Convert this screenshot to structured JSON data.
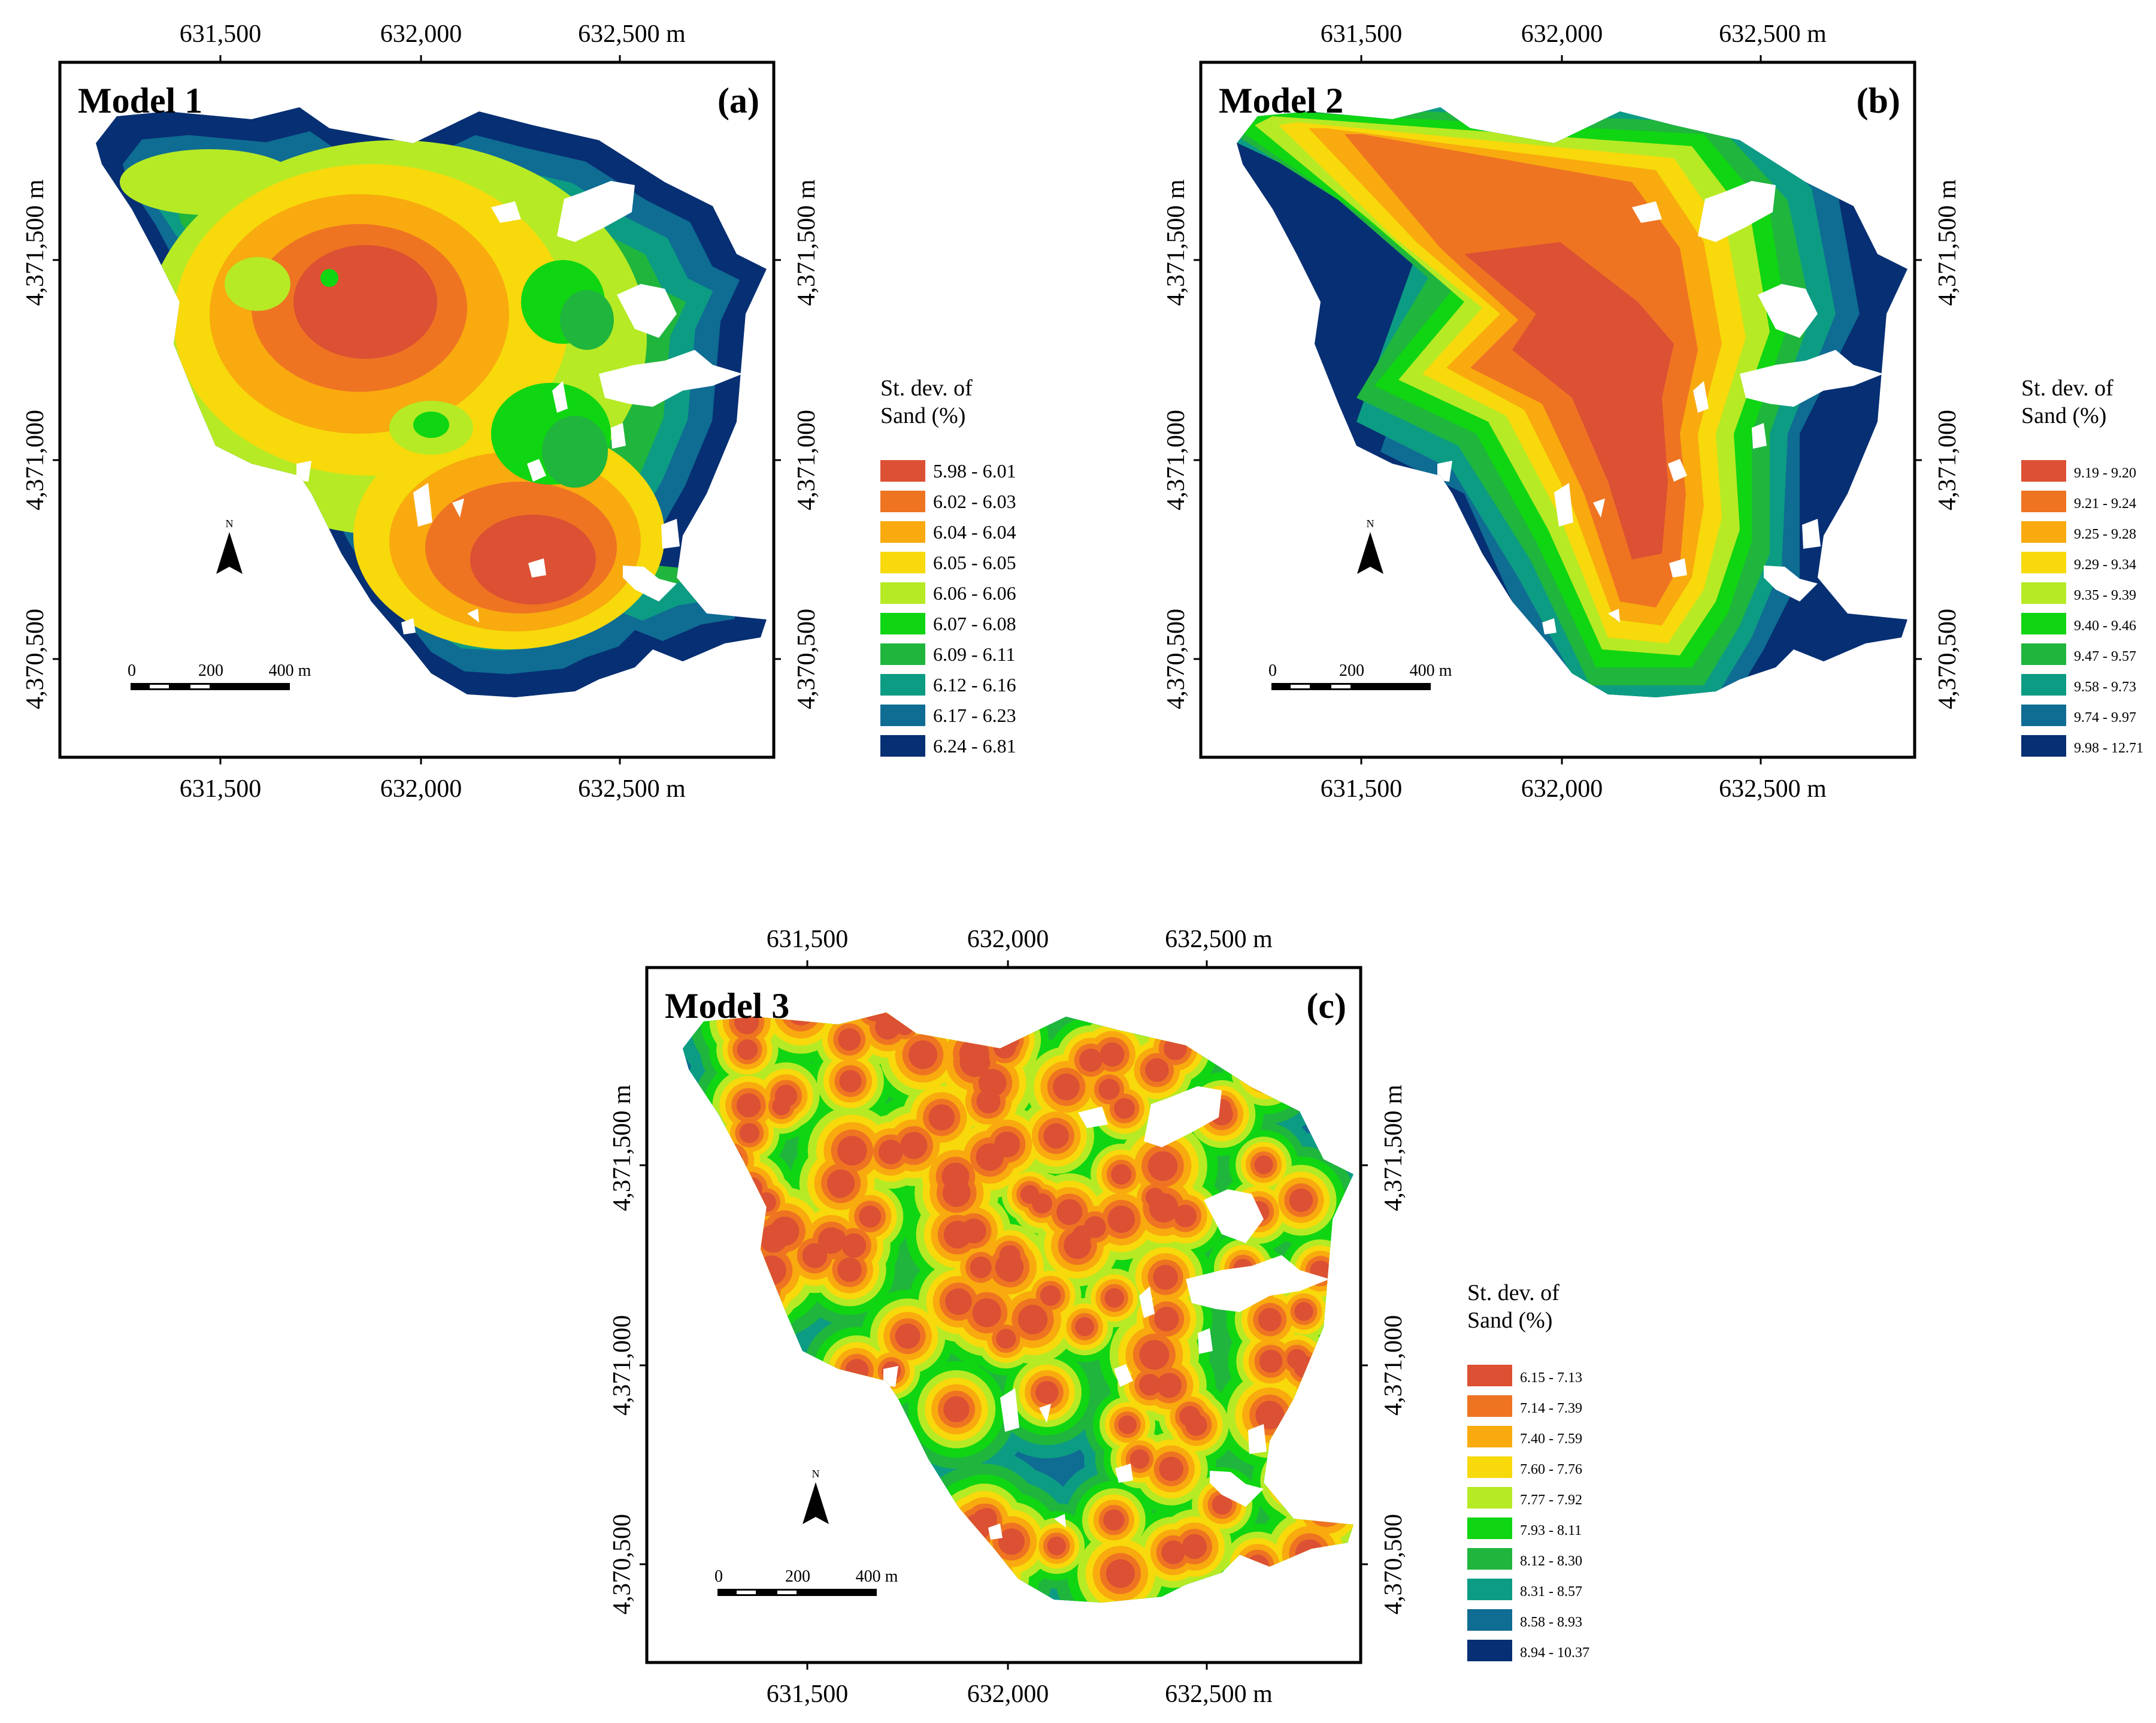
{
  "axes": {
    "easting": [
      "631,500",
      "632,000",
      "632,500 m"
    ],
    "northing": [
      "4,371,500 m",
      "4,371,000",
      "4,370,500"
    ]
  },
  "palette": [
    "#dc5033",
    "#ee7422",
    "#f9aa0e",
    "#f7d90c",
    "#b6ea25",
    "#10d512",
    "#20b53d",
    "#0c9c84",
    "#0f6c93",
    "#072f73"
  ],
  "legend_title": [
    "St. dev. of",
    "Sand (%)"
  ],
  "north_label": "N",
  "scale_labels": [
    "0",
    "200",
    "400 m"
  ],
  "panels": [
    {
      "title": "Model 1",
      "label": "(a)",
      "classes": [
        "5.98 - 6.01",
        "6.02 - 6.03",
        "6.04 - 6.04",
        "6.05 - 6.05",
        "6.06 - 6.06",
        "6.07 - 6.08",
        "6.09 - 6.11",
        "6.12 - 6.16",
        "6.17 - 6.23",
        "6.24 - 6.81"
      ]
    },
    {
      "title": "Model 2",
      "label": "(b)",
      "classes": [
        "9.19 - 9.20",
        "9.21 - 9.24",
        "9.25 - 9.28",
        "9.29 - 9.34",
        "9.35 - 9.39",
        "9.40 - 9.46",
        "9.47 - 9.57",
        "9.58 - 9.73",
        "9.74 - 9.97",
        "9.98 - 12.71"
      ]
    },
    {
      "title": "Model 3",
      "label": "(c)",
      "classes": [
        "6.15 - 7.13",
        "7.14 - 7.39",
        "7.40 - 7.59",
        "7.60 - 7.76",
        "7.77 - 7.92",
        "7.93 - 8.11",
        "8.12 - 8.30",
        "8.31 - 8.57",
        "8.58 - 8.93",
        "8.94 - 10.37"
      ]
    }
  ]
}
